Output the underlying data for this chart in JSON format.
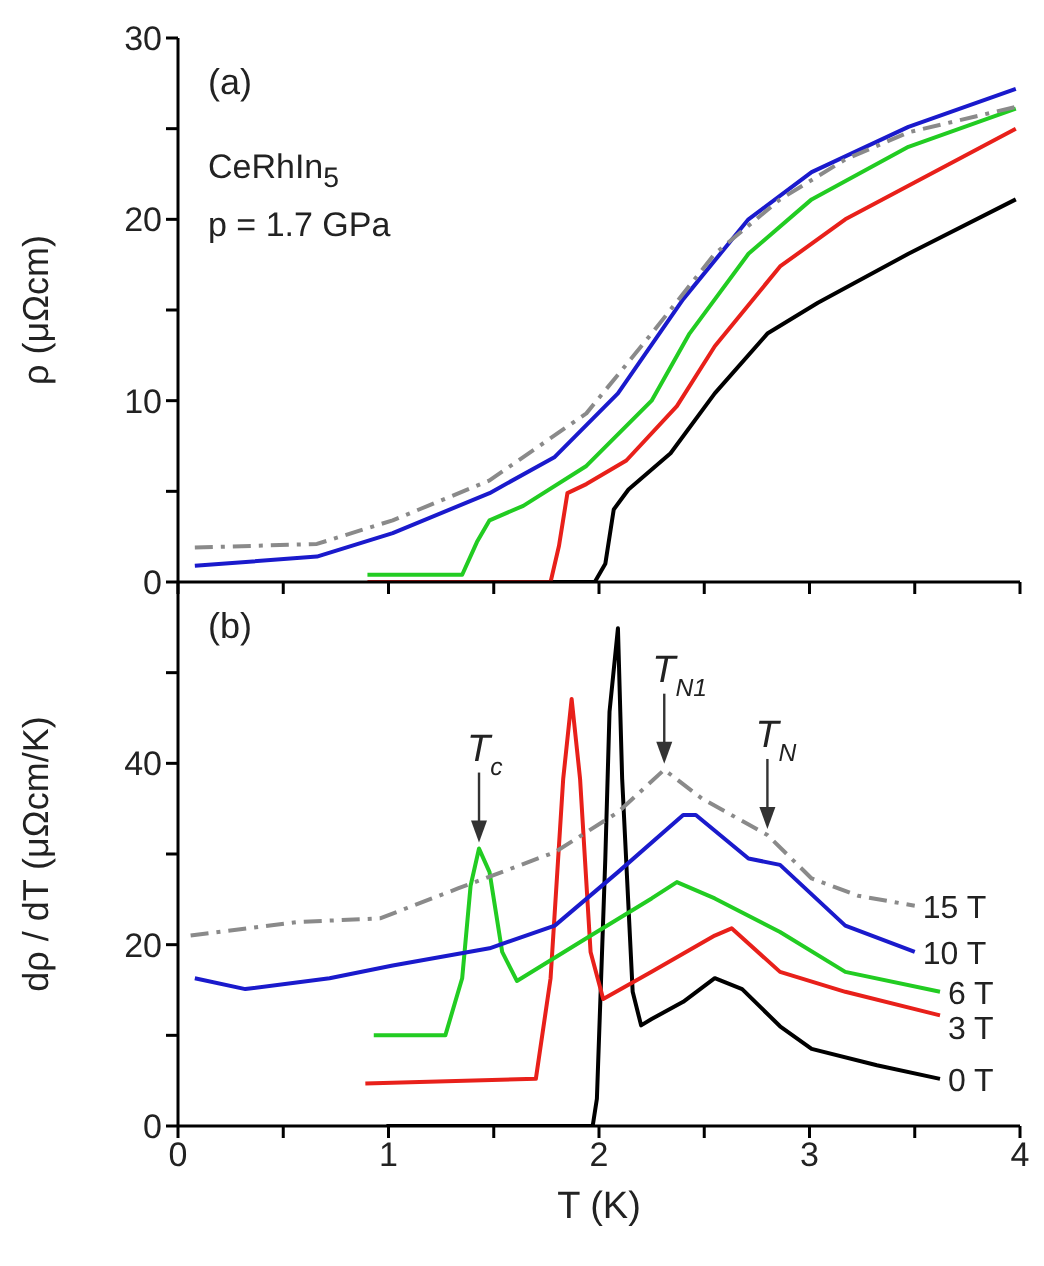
{
  "chart_data": [
    {
      "type": "line",
      "ylabel": "ρ (μΩcm)",
      "xlim": [
        0,
        4
      ],
      "ylim": [
        0,
        30
      ],
      "xticks": [
        0,
        {
          "value": 0.5,
          "label": null
        },
        1,
        {
          "value": 1.5,
          "label": null
        },
        2,
        {
          "value": 2.5,
          "label": null
        },
        3,
        {
          "value": 3.5,
          "label": null
        },
        4
      ],
      "yticks": [
        0,
        {
          "value": 5,
          "label": null
        },
        10,
        {
          "value": 15,
          "label": null
        },
        20,
        {
          "value": 25,
          "label": null
        },
        30
      ],
      "tick_labels": "y",
      "annotations": [
        "(a)",
        "CeRhIn$_{5}$",
        "p = 1.7 GPa"
      ],
      "series": [
        {
          "color": "#000000",
          "x": [
            1.0,
            1.98,
            2.03,
            2.07,
            2.14,
            2.34,
            2.55,
            2.8,
            3.04,
            3.47,
            3.98
          ],
          "values": [
            0,
            0,
            1,
            4,
            5.1,
            7.1,
            10.4,
            13.7,
            15.4,
            18.1,
            21.1
          ]
        },
        {
          "color": "#e8201a",
          "x": [
            0.9,
            1.77,
            1.81,
            1.85,
            1.94,
            2.13,
            2.37,
            2.55,
            2.86,
            3.17,
            3.98
          ],
          "values": [
            0,
            0,
            2,
            4.9,
            5.4,
            6.7,
            9.7,
            13.0,
            17.4,
            20.0,
            25.0
          ]
        },
        {
          "color": "#22cc22",
          "x": [
            0.9,
            1.35,
            1.42,
            1.48,
            1.64,
            1.94,
            2.25,
            2.43,
            2.71,
            3.01,
            3.47,
            3.98
          ],
          "values": [
            0.4,
            0.4,
            2.2,
            3.4,
            4.2,
            6.4,
            10.0,
            13.7,
            18.1,
            21.1,
            24.0,
            26.1
          ]
        },
        {
          "color": "#1a1acc",
          "x": [
            0.08,
            0.66,
            1.02,
            1.48,
            1.79,
            2.09,
            2.4,
            2.71,
            3.01,
            3.47,
            3.98
          ],
          "values": [
            0.9,
            1.4,
            2.7,
            4.9,
            6.9,
            10.4,
            15.6,
            20.0,
            22.6,
            25.1,
            27.2
          ]
        },
        {
          "color": "#8a8a8a",
          "line_style": "dashed",
          "x": [
            0.08,
            0.66,
            1.02,
            1.48,
            1.94,
            2.25,
            2.55,
            2.86,
            3.17,
            3.47,
            3.98
          ],
          "values": [
            1.9,
            2.1,
            3.4,
            5.6,
            9.3,
            13.7,
            18.1,
            21.1,
            23.3,
            24.8,
            26.2
          ]
        }
      ]
    },
    {
      "type": "line",
      "xlabel": "T (K)",
      "ylabel": "dρ / dT (μΩcm/K)",
      "xlim": [
        0,
        4
      ],
      "ylim": [
        0,
        60
      ],
      "xticks": [
        0,
        {
          "value": 0.5,
          "label": null
        },
        1,
        {
          "value": 1.5,
          "label": null
        },
        2,
        {
          "value": 2.5,
          "label": null
        },
        3,
        {
          "value": 3.5,
          "label": null
        },
        4
      ],
      "yticks": [
        0,
        {
          "value": 10,
          "label": null
        },
        20,
        {
          "value": 30,
          "label": null
        },
        40,
        {
          "value": 50,
          "label": null
        }
      ],
      "annotations": [
        "(b)",
        {
          "text": "T$_{c}$",
          "x": 1.43,
          "y": 30.6
        },
        {
          "text": "T$_{N1}$",
          "x": 2.31,
          "y": 39.3
        },
        {
          "text": "T$_{N}$",
          "x": 2.8,
          "y": 32.1
        }
      ],
      "series": [
        {
          "name": "0 T",
          "color": "#000000",
          "x": [
            0.99,
            1.97,
            1.99,
            2.03,
            2.05,
            2.09,
            2.11,
            2.16,
            2.2,
            2.25,
            2.4,
            2.55,
            2.68,
            2.86,
            3.01,
            3.32,
            3.62
          ],
          "values": [
            0,
            0,
            3,
            29.5,
            45.7,
            54.9,
            38.3,
            14.8,
            11.1,
            11.8,
            13.7,
            16.3,
            15.1,
            11,
            8.5,
            6.7,
            5.2
          ]
        },
        {
          "name": "3 T",
          "color": "#e8201a",
          "x": [
            0.89,
            1.7,
            1.77,
            1.83,
            1.87,
            1.91,
            1.96,
            2.02,
            2.25,
            2.55,
            2.63,
            2.86,
            3.17,
            3.62
          ],
          "values": [
            4.7,
            5.2,
            16.3,
            38.3,
            47.1,
            38.3,
            19.2,
            14.0,
            17.0,
            21.0,
            21.8,
            17.0,
            14.8,
            12.2
          ]
        },
        {
          "name": "6 T",
          "color": "#22cc22",
          "x": [
            0.93,
            1.27,
            1.35,
            1.39,
            1.43,
            1.48,
            1.54,
            1.61,
            1.94,
            2.25,
            2.37,
            2.55,
            2.86,
            3.17,
            3.62
          ],
          "values": [
            10.0,
            10.0,
            16.3,
            26.5,
            30.6,
            28.0,
            19.2,
            16.0,
            20.7,
            25.1,
            26.9,
            25.1,
            21.4,
            17.0,
            14.8
          ]
        },
        {
          "name": "10 T",
          "color": "#1a1acc",
          "x": [
            0.08,
            0.32,
            0.72,
            1.02,
            1.48,
            1.79,
            2.09,
            2.4,
            2.46,
            2.71,
            2.86,
            3.17,
            3.5
          ],
          "values": [
            16.3,
            15.1,
            16.3,
            17.7,
            19.6,
            22.1,
            28.0,
            34.3,
            34.3,
            29.5,
            28.8,
            22.1,
            19.2
          ]
        },
        {
          "name": "15 T",
          "color": "#8a8a8a",
          "line_style": "dashed",
          "x": [
            0.06,
            0.57,
            0.96,
            1.33,
            1.79,
            2.09,
            2.31,
            2.49,
            2.8,
            3.01,
            3.23,
            3.5
          ],
          "values": [
            21.0,
            22.5,
            22.9,
            26.2,
            30.2,
            34.6,
            39.3,
            36.1,
            32.1,
            27.3,
            25.4,
            24.3
          ]
        }
      ]
    }
  ]
}
